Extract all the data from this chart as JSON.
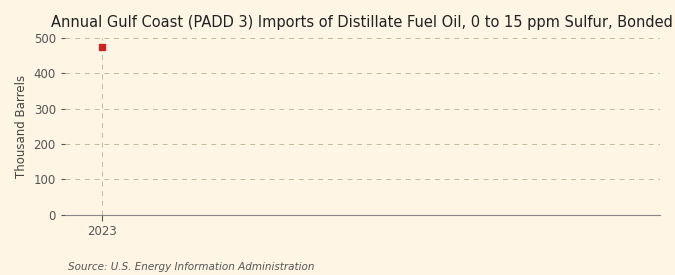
{
  "title": "Annual Gulf Coast (PADD 3) Imports of Distillate Fuel Oil, 0 to 15 ppm Sulfur, Bonded",
  "ylabel": "Thousand Barrels",
  "source_text": "Source: U.S. Energy Information Administration",
  "data_x": [
    2023
  ],
  "data_y": [
    476
  ],
  "marker_color": "#cc2222",
  "marker_size": 4,
  "xlim": [
    2022.6,
    2029.0
  ],
  "ylim": [
    0,
    500
  ],
  "yticks": [
    0,
    100,
    200,
    300,
    400,
    500
  ],
  "xticks": [
    2023
  ],
  "background_color": "#fef5e4",
  "grid_color": "#c8b89a",
  "title_fontsize": 10.5,
  "label_fontsize": 8.5,
  "tick_fontsize": 8.5,
  "source_fontsize": 7.5
}
